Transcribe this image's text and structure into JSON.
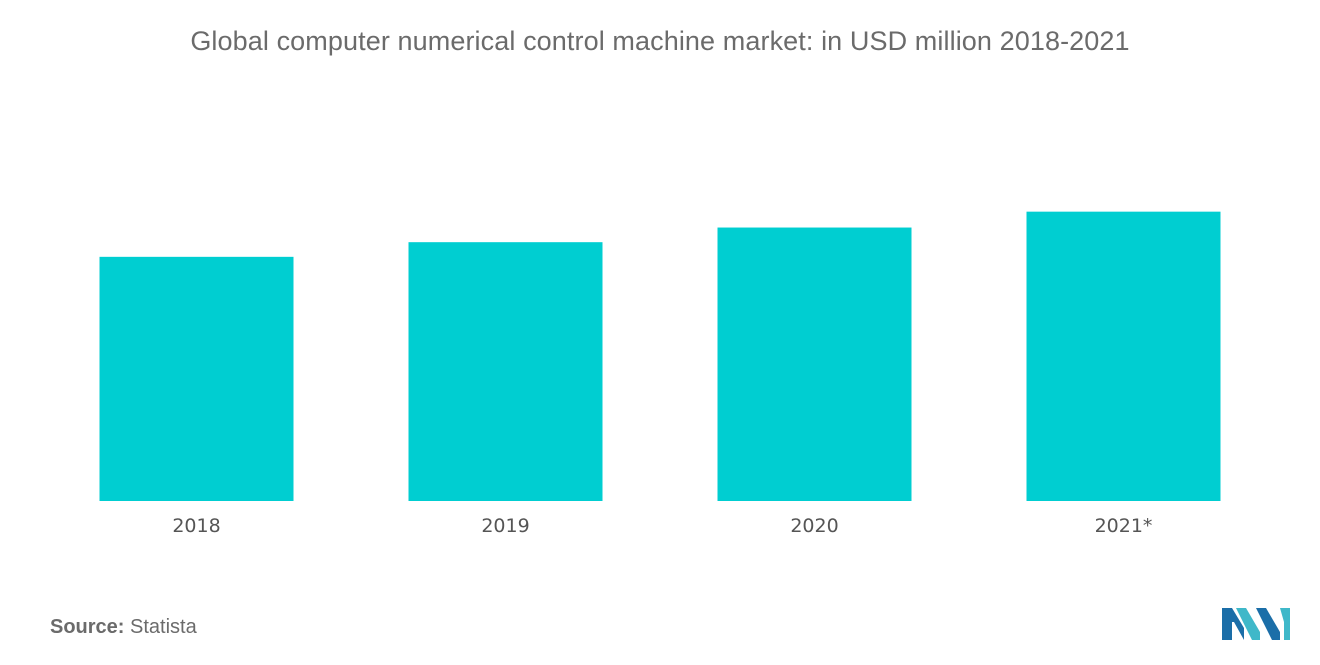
{
  "chart_data": {
    "type": "bar",
    "title": "Global computer numerical control machine market: in USD million  2018-2021",
    "categories": [
      "2018",
      "2019",
      "2020",
      "2021*"
    ],
    "values": [
      100,
      106,
      112,
      118.5
    ],
    "ylim": [
      0,
      120
    ],
    "xlabel": "",
    "ylabel": "",
    "grid": false,
    "legend": "none",
    "bar_color": "#00CED1"
  },
  "source": {
    "label": "Source:",
    "value": "Statista"
  },
  "colors": {
    "bar": "#00CED1",
    "logo_dark": "#1b6ea8",
    "logo_light": "#3fb8c9"
  }
}
